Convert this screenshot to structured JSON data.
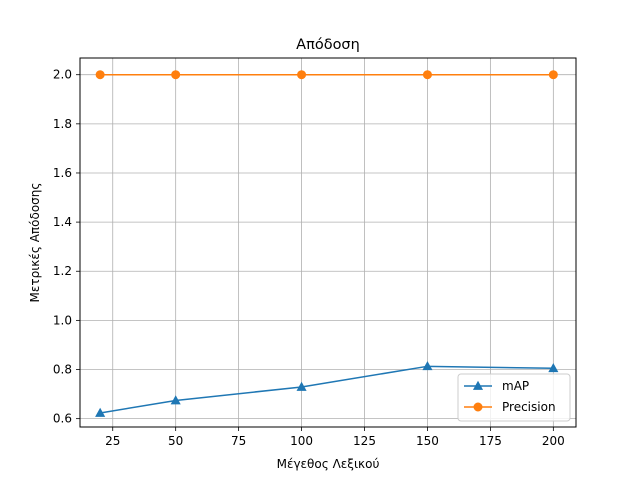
{
  "chart_data": {
    "type": "line",
    "title": "Απόδοση",
    "xlabel": "Μέγεθος Λεξικού",
    "ylabel": "Μετρικές Απόδοσης",
    "x": [
      20,
      50,
      100,
      150,
      200
    ],
    "xlim": [
      12,
      209
    ],
    "ylim": [
      0.566,
      2.068
    ],
    "xticks": [
      25,
      50,
      75,
      100,
      125,
      150,
      175,
      200
    ],
    "xtick_labels": [
      "25",
      "50",
      "75",
      "100",
      "125",
      "150",
      "175",
      "200"
    ],
    "yticks": [
      0.6,
      0.8,
      1.0,
      1.2,
      1.4,
      1.6,
      1.8,
      2.0
    ],
    "ytick_labels": [
      "0.6",
      "0.8",
      "1.0",
      "1.2",
      "1.4",
      "1.6",
      "1.8",
      "2.0"
    ],
    "grid": true,
    "legend_position": "lower-right",
    "series": [
      {
        "name": "mAP",
        "values": [
          0.623,
          0.674,
          0.729,
          0.813,
          0.805
        ],
        "color": "#1f77b4",
        "marker": "triangle"
      },
      {
        "name": "Precision",
        "values": [
          2.0,
          2.0,
          2.0,
          2.0,
          2.0
        ],
        "color": "#ff7f0e",
        "marker": "circle"
      }
    ]
  }
}
